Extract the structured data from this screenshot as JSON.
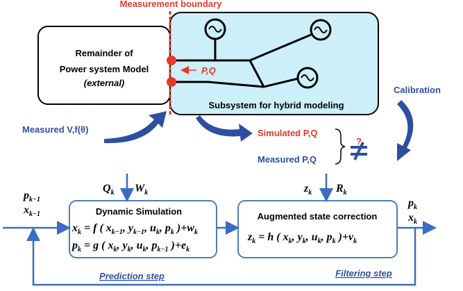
{
  "top": {
    "boundary_label": "Measurement boundary",
    "external_lines": [
      "Remainder of",
      "Power system Model",
      "(external)"
    ],
    "flow_label": "P,Q",
    "subsystem_label": "Subsystem for hybrid modeling",
    "calibration": "Calibration",
    "measured_input": "Measured V,f(θ)",
    "simulated": "Simulated P,Q",
    "measured": "Measured P,Q",
    "mismatch": "?"
  },
  "bottom": {
    "prior": [
      [
        "p",
        {
          "sub": "k−1"
        }
      ],
      [
        "x",
        {
          "sub": "k−1"
        }
      ]
    ],
    "process_inputs": [
      [
        "Q",
        {
          "sub": "k"
        }
      ],
      [
        "W",
        {
          "sub": "k"
        }
      ]
    ],
    "prediction_title": "Dynamic Simulation",
    "prediction_eqs": [
      [
        "x",
        {
          "sub": "k"
        },
        " = f ( x",
        {
          "sub": "k−1"
        },
        ", y",
        {
          "sub": "k−1"
        },
        ", u",
        {
          "sub": "k"
        },
        ", p",
        {
          "sub": "k"
        },
        " )+w",
        {
          "sub": "k"
        }
      ],
      [
        "p",
        {
          "sub": "k"
        },
        " = g ( x",
        {
          "sub": "k"
        },
        ", y",
        {
          "sub": "k"
        },
        ", u",
        {
          "sub": "k"
        },
        ", p",
        {
          "sub": "k−1"
        },
        " )+e",
        {
          "sub": "k"
        }
      ]
    ],
    "measurement_inputs": [
      [
        "z",
        {
          "sub": "k"
        }
      ],
      [
        "R",
        {
          "sub": "k"
        }
      ]
    ],
    "filter_title": "Augmented state correction",
    "filter_eq": [
      "z",
      {
        "sub": "k"
      },
      " = h ( x",
      {
        "sub": "k"
      },
      ", y",
      {
        "sub": "k"
      },
      ", u",
      {
        "sub": "k"
      },
      ", p",
      {
        "sub": "k"
      },
      " )+v",
      {
        "sub": "k"
      }
    ],
    "outputs": [
      [
        "p",
        {
          "sub": "k"
        }
      ],
      [
        "x",
        {
          "sub": "k"
        }
      ]
    ],
    "prediction_step": "Prediction step",
    "filtering_step": "Filtering step"
  }
}
